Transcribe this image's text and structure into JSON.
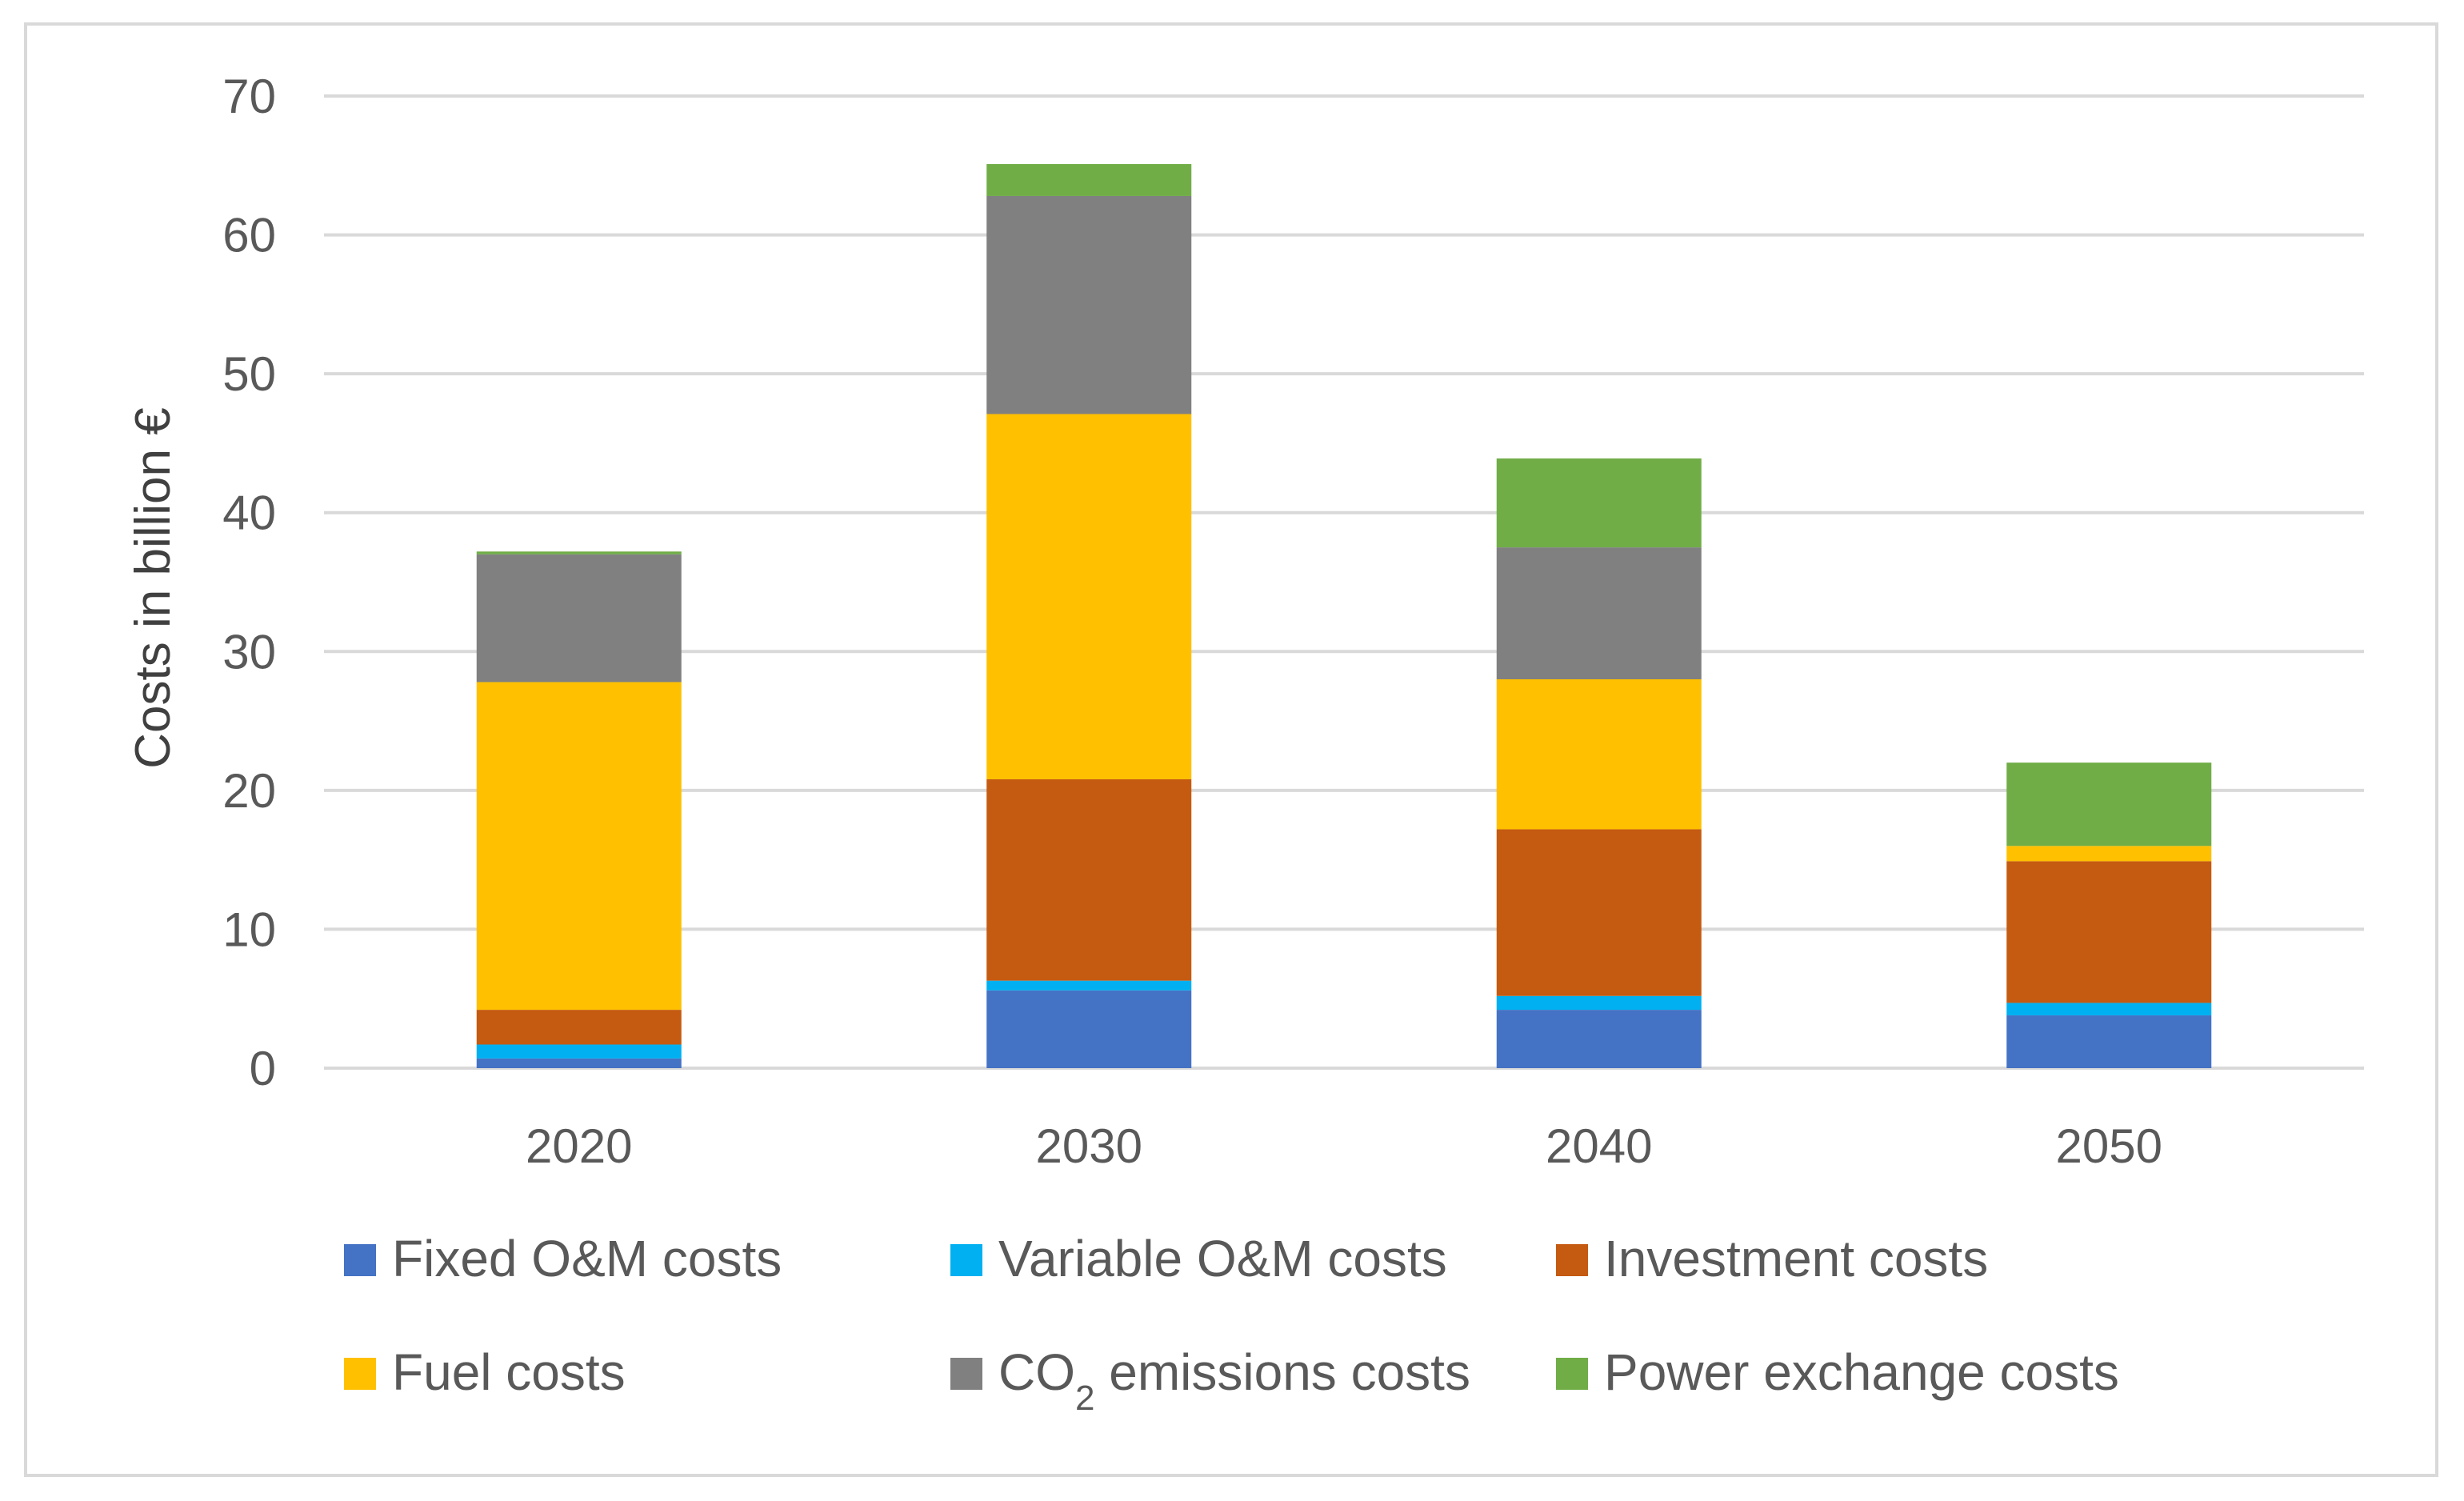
{
  "chart_data": {
    "type": "bar",
    "stacked": true,
    "title": "",
    "xlabel": "",
    "ylabel": "Costs in billion €",
    "ylim": [
      0,
      70
    ],
    "yticks": [
      0,
      10,
      20,
      30,
      40,
      50,
      60,
      70
    ],
    "grid": true,
    "legend_position": "bottom",
    "categories": [
      "2020",
      "2030",
      "2040",
      "2050"
    ],
    "series": [
      {
        "name": "Fixed O&M costs",
        "color": "#4472c4",
        "values": [
          0.7,
          5.6,
          4.2,
          3.8
        ]
      },
      {
        "name": "Variable O&M costs",
        "color": "#00b0f0",
        "values": [
          1.0,
          0.7,
          1.0,
          0.9
        ]
      },
      {
        "name": "Investment costs",
        "color": "#c55a11",
        "values": [
          2.5,
          14.5,
          12.0,
          10.2
        ]
      },
      {
        "name": "Fuel costs",
        "color": "#ffc000",
        "values": [
          23.6,
          26.3,
          10.8,
          1.1
        ]
      },
      {
        "name": "CO",
        "name_subscript": "2",
        "name_suffix": " emissions costs",
        "color": "#808080",
        "values": [
          9.2,
          15.7,
          9.5,
          0.0
        ]
      },
      {
        "name": "Power exchange costs",
        "color": "#70ad47",
        "values": [
          0.2,
          2.3,
          6.4,
          6.0
        ]
      }
    ]
  }
}
